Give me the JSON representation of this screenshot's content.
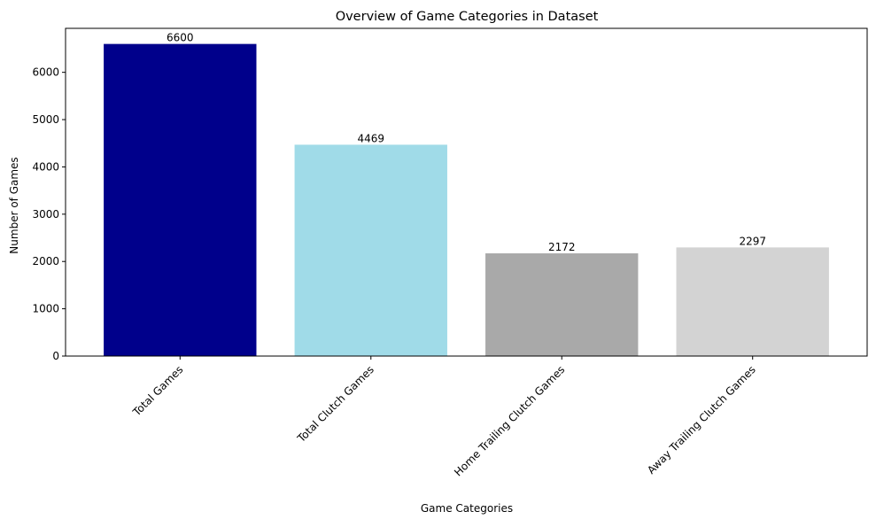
{
  "chart_data": {
    "type": "bar",
    "title": "Overview of Game Categories in Dataset",
    "xlabel": "Game Categories",
    "ylabel": "Number of Games",
    "categories": [
      "Total Games",
      "Total Clutch Games",
      "Home Trailing Clutch Games",
      "Away Trailing Clutch Games"
    ],
    "values": [
      6600,
      4469,
      2172,
      2297
    ],
    "data_labels": [
      "6600",
      "4469",
      "2172",
      "2297"
    ],
    "colors": [
      "#00008b",
      "#a0dbe8",
      "#a9a9a9",
      "#d3d3d3"
    ],
    "yticks": [
      0,
      1000,
      2000,
      3000,
      4000,
      5000,
      6000
    ],
    "ylim": [
      0,
      6930
    ],
    "grid": false,
    "legend": "none"
  }
}
